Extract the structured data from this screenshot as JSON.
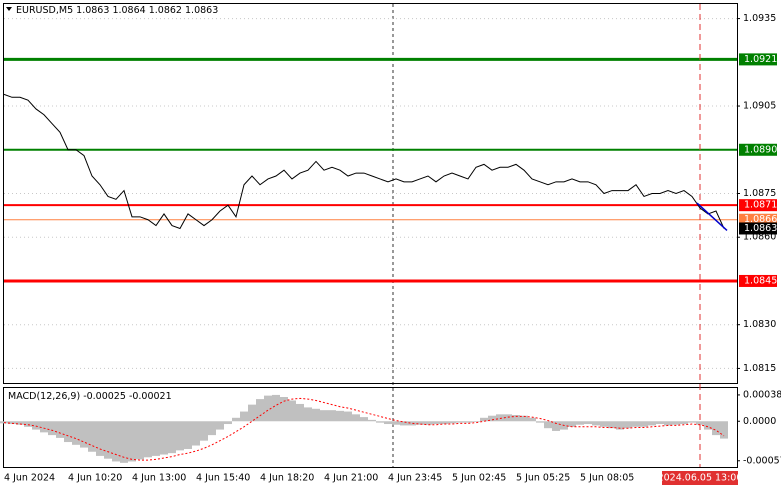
{
  "chart_data": [
    {
      "type": "line",
      "title": "EURUSD,M5",
      "ohlc": [
        1.0863,
        1.0864,
        1.0862,
        1.0863
      ],
      "categories": [
        "4 Jun 2024",
        null,
        null,
        null,
        null,
        null,
        null,
        null,
        "4 Jun 10:20",
        null,
        null,
        null,
        null,
        null,
        null,
        null,
        "4 Jun 13:00",
        null,
        null,
        null,
        null,
        null,
        null,
        null,
        "4 Jun 15:40",
        null,
        null,
        null,
        null,
        null,
        null,
        null,
        "4 Jun 18:20",
        null,
        null,
        null,
        null,
        null,
        null,
        null,
        "4 Jun 21:00",
        null,
        null,
        null,
        null,
        null,
        null,
        null,
        "4 Jun 23:45",
        null,
        null,
        null,
        null,
        null,
        null,
        null,
        "5 Jun 02:45",
        null,
        null,
        null,
        null,
        null,
        null,
        null,
        "5 Jun 05:25",
        null,
        null,
        null,
        null,
        null,
        null,
        null,
        "5 Jun 08:05",
        null,
        null,
        null,
        null,
        null,
        null,
        null,
        null,
        null,
        null,
        null,
        null,
        null,
        null,
        "2024.06.05 13:00",
        null,
        null,
        null
      ],
      "values": [
        1.0909,
        1.0908,
        1.0908,
        1.0907,
        1.0904,
        1.0902,
        1.0899,
        1.0896,
        1.089,
        1.089,
        1.0888,
        1.0881,
        1.0878,
        1.0874,
        1.0873,
        1.0876,
        1.0867,
        1.0867,
        1.0866,
        1.0864,
        1.0868,
        1.0864,
        1.0863,
        1.0868,
        1.0866,
        1.0864,
        1.0866,
        1.0869,
        1.0871,
        1.0867,
        1.0878,
        1.0881,
        1.0878,
        1.088,
        1.0881,
        1.0883,
        1.088,
        1.0882,
        1.0883,
        1.0886,
        1.0883,
        1.0884,
        1.0883,
        1.0881,
        1.0882,
        1.0882,
        1.0881,
        1.088,
        1.0879,
        1.088,
        1.0879,
        1.0879,
        1.088,
        1.0881,
        1.0879,
        1.0881,
        1.0882,
        1.0881,
        1.088,
        1.0884,
        1.0885,
        1.0883,
        1.0884,
        1.0884,
        1.0885,
        1.0883,
        1.088,
        1.0879,
        1.0878,
        1.0879,
        1.0879,
        1.088,
        1.0879,
        1.0879,
        1.0878,
        1.0875,
        1.0876,
        1.0876,
        1.0876,
        1.0878,
        1.0874,
        1.0875,
        1.0875,
        1.0876,
        1.0875,
        1.0876,
        1.0874,
        1.087,
        1.0868,
        1.0869,
        1.0863
      ],
      "color": "#000000",
      "highlight_category": 87,
      "ylim": [
        1.081,
        1.094
      ],
      "yticks": [
        1.0935,
        1.0905,
        1.0875,
        {
          "value": 1.086,
          "label": "1.0860"
        },
        {
          "value": 1.083,
          "label": "1.0830"
        },
        1.0815
      ],
      "grid": true,
      "levels": [
        1.0921,
        {
          "value": 1.089,
          "label": "1.0890"
        },
        1.0871,
        1.0866,
        1.0845
      ],
      "level_colors": [
        "#008000",
        "#008000",
        "#ff0000",
        "#ff8040",
        "#ff0000"
      ],
      "level_widths": [
        3,
        2,
        2,
        1,
        3
      ],
      "last_price": 1.0863
    },
    {
      "type": "macd",
      "title": "MACD(12,26,9)",
      "ylim": [
        -0.00066,
        0.00048
      ],
      "yticks": [
        0.00038,
        {
          "value": 0,
          "label": "0.0000"
        },
        -0.00057
      ],
      "series": [
        {
          "color": "#c0c0c0",
          "values": [
            -3e-05,
            -4e-05,
            -5e-05,
            -8e-05,
            -0.00012,
            -0.00016,
            -0.0002,
            -0.00024,
            -0.0003,
            -0.00034,
            -0.00038,
            -0.00044,
            -0.0005,
            -0.00054,
            -0.00058,
            -0.0006,
            -0.00058,
            -0.00055,
            -0.00052,
            -0.0005,
            -0.00048,
            -0.00046,
            -0.00042,
            -0.0004,
            -0.00035,
            -0.00028,
            -0.0002,
            -0.00012,
            -4e-05,
            5e-05,
            0.00014,
            0.00024,
            0.00032,
            0.00037,
            0.00038,
            0.00035,
            0.0003,
            0.00025,
            0.0002,
            0.00018,
            0.00016,
            0.00016,
            0.00015,
            0.00014,
            0.0001,
            6e-05,
            2e-05,
            -2e-05,
            -4e-05,
            -5e-05,
            -6e-05,
            -6e-05,
            -5e-05,
            -5e-05,
            -4e-05,
            -4e-05,
            -3e-05,
            -2e-05,
            -2e-05,
            -1e-05,
            5e-05,
            8e-05,
            0.0001,
            0.0001,
            9e-05,
            8e-05,
            5e-05,
            -2e-05,
            -0.0001,
            -0.00014,
            -0.00012,
            -8e-05,
            -5e-05,
            -4e-05,
            -6e-05,
            -8e-05,
            -0.0001,
            -0.00012,
            -0.0001,
            -8e-05,
            -8e-05,
            -6e-05,
            -4e-05,
            -6e-05,
            -5e-05,
            -4e-05,
            -2e-05,
            -5e-05,
            -0.00012,
            -0.0002,
            -0.00025
          ]
        },
        {
          "color": "#ff0000",
          "values": [
            -2e-05,
            -3e-05,
            -4e-05,
            -5e-05,
            -7e-05,
            -0.0001,
            -0.00013,
            -0.00017,
            -0.00021,
            -0.00025,
            -0.0003,
            -0.00035,
            -0.0004,
            -0.00044,
            -0.00048,
            -0.00052,
            -0.00055,
            -0.00056,
            -0.00056,
            -0.00055,
            -0.00053,
            -0.00051,
            -0.00048,
            -0.00046,
            -0.00043,
            -0.00039,
            -0.00034,
            -0.00028,
            -0.00022,
            -0.00015,
            -8e-05,
            0,
            8e-05,
            0.00016,
            0.00023,
            0.00029,
            0.00032,
            0.00033,
            0.00032,
            0.0003,
            0.00027,
            0.00024,
            0.00021,
            0.00019,
            0.00016,
            0.00013,
            0.0001,
            7e-05,
            4e-05,
            1e-05,
            -1e-05,
            -3e-05,
            -4e-05,
            -5e-05,
            -5e-05,
            -4e-05,
            -4e-05,
            -3e-05,
            -3e-05,
            -2e-05,
            0,
            2e-05,
            4e-05,
            6e-05,
            7e-05,
            7e-05,
            6e-05,
            4e-05,
            1e-05,
            -3e-05,
            -6e-05,
            -8e-05,
            -8e-05,
            -8e-05,
            -8e-05,
            -9e-05,
            -9e-05,
            -0.0001,
            -0.0001,
            -9e-05,
            -9e-05,
            -8e-05,
            -7e-05,
            -6e-05,
            -6e-05,
            -5e-05,
            -4e-05,
            -5e-05,
            -8e-05,
            -0.00013,
            -0.00021
          ]
        }
      ]
    }
  ]
}
